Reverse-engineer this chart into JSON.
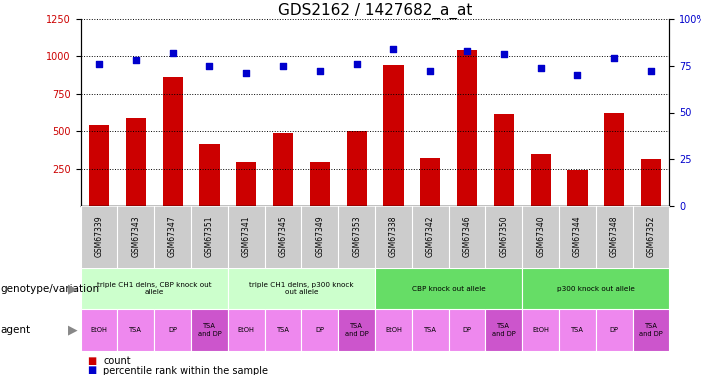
{
  "title": "GDS2162 / 1427682_a_at",
  "samples": [
    "GSM67339",
    "GSM67343",
    "GSM67347",
    "GSM67351",
    "GSM67341",
    "GSM67345",
    "GSM67349",
    "GSM67353",
    "GSM67338",
    "GSM67342",
    "GSM67346",
    "GSM67350",
    "GSM67340",
    "GSM67344",
    "GSM67348",
    "GSM67352"
  ],
  "counts": [
    540,
    590,
    860,
    415,
    295,
    490,
    295,
    505,
    940,
    320,
    1040,
    615,
    350,
    245,
    625,
    315
  ],
  "percentiles": [
    76,
    78,
    82,
    75,
    71,
    75,
    72,
    76,
    84,
    72,
    83,
    81,
    74,
    70,
    79,
    72
  ],
  "bar_color": "#cc0000",
  "dot_color": "#0000cc",
  "ylim_left": [
    0,
    1250
  ],
  "ylim_right": [
    0,
    100
  ],
  "yticks_left": [
    250,
    500,
    750,
    1000,
    1250
  ],
  "yticks_right": [
    0,
    25,
    50,
    75,
    100
  ],
  "ytick_right_labels": [
    "0",
    "25",
    "50",
    "75",
    "100%"
  ],
  "genotype_groups": [
    {
      "label": "triple CH1 delns, CBP knock out\nallele",
      "start": 0,
      "end": 4,
      "color": "#ccffcc"
    },
    {
      "label": "triple CH1 delns, p300 knock\nout allele",
      "start": 4,
      "end": 8,
      "color": "#ccffcc"
    },
    {
      "label": "CBP knock out allele",
      "start": 8,
      "end": 12,
      "color": "#66dd66"
    },
    {
      "label": "p300 knock out allele",
      "start": 12,
      "end": 16,
      "color": "#66dd66"
    }
  ],
  "agent_pattern": [
    "EtOH",
    "TSA",
    "DP",
    "TSA\nand DP",
    "EtOH",
    "TSA",
    "DP",
    "TSA\nand DP",
    "EtOH",
    "TSA",
    "DP",
    "TSA\nand DP",
    "EtOH",
    "TSA",
    "DP",
    "TSA\nand DP"
  ],
  "agent_color_normal": "#ee88ee",
  "agent_color_special": "#cc55cc",
  "agent_special": "TSA\nand DP",
  "sample_bg_color": "#cccccc",
  "xlabel_genotype": "genotype/variation",
  "xlabel_agent": "agent",
  "legend_count_color": "#cc0000",
  "legend_percentile_color": "#0000cc",
  "bg_color": "#ffffff",
  "tick_label_color_left": "#cc0000",
  "tick_label_color_right": "#0000cc",
  "title_fontsize": 11,
  "tick_fontsize": 7,
  "bar_width": 0.55
}
